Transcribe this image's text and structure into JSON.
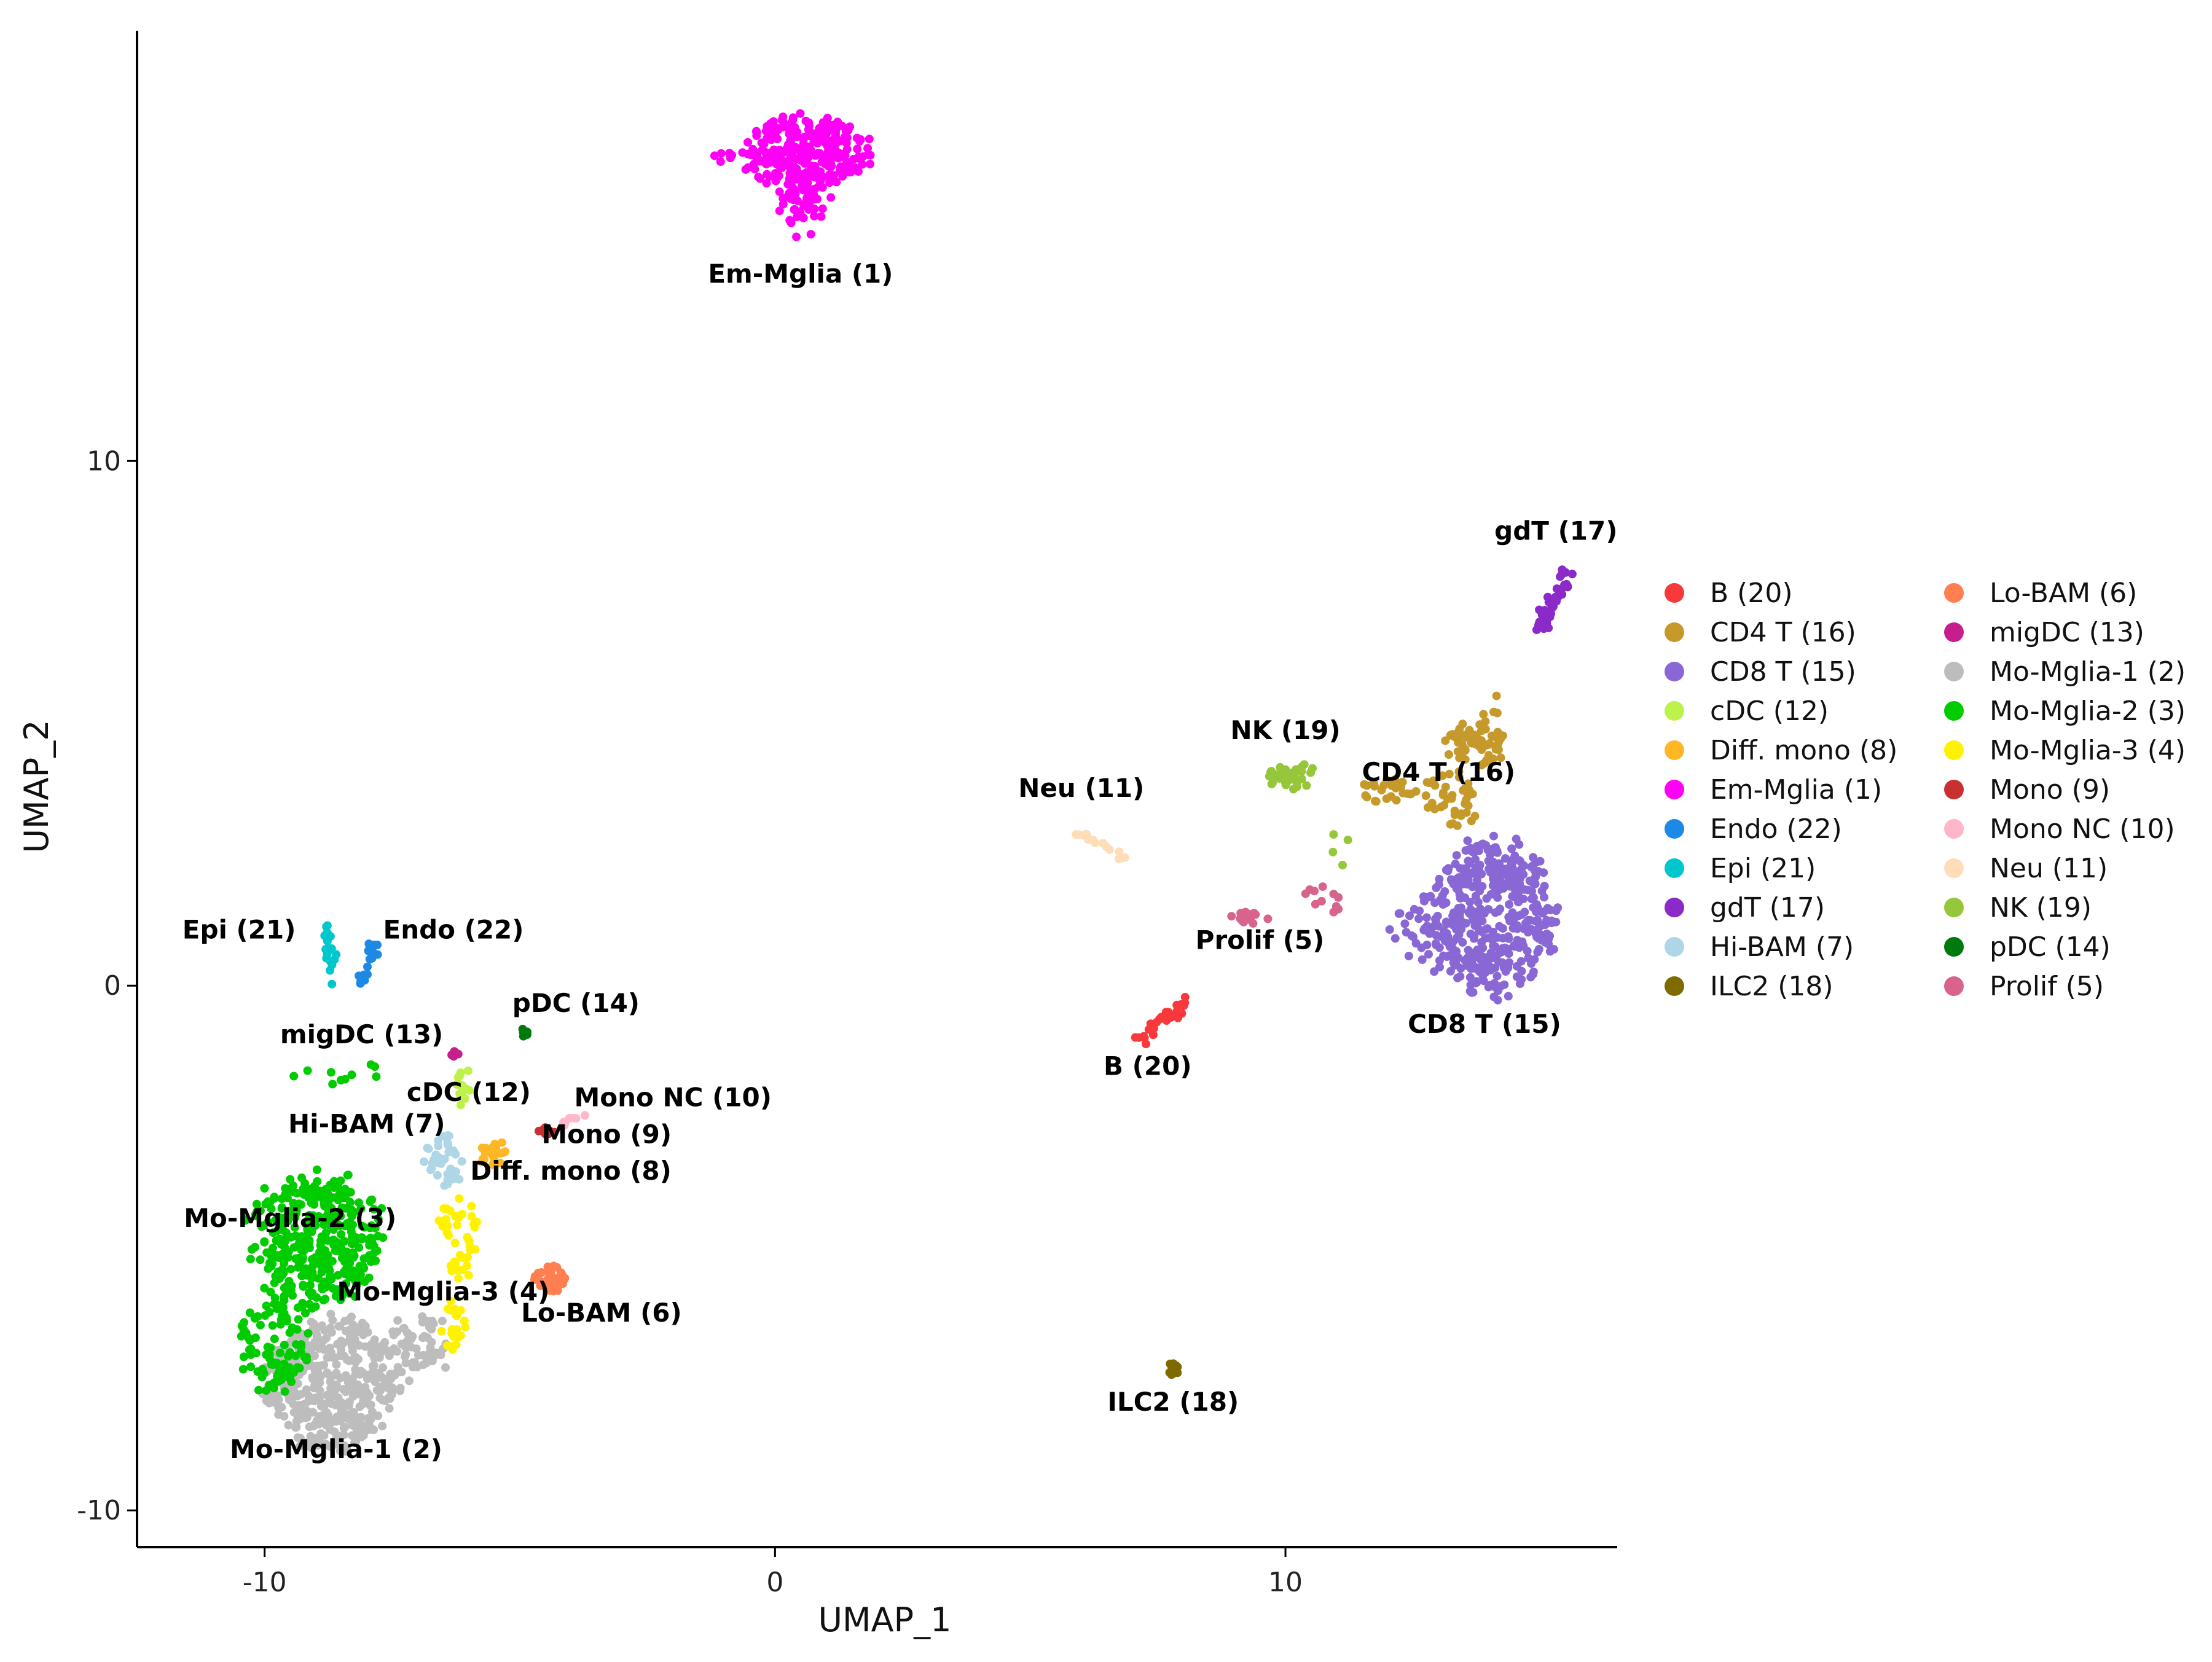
{
  "chart_data": {
    "type": "scatter",
    "title": "",
    "xlabel": "UMAP_1",
    "ylabel": "UMAP_2",
    "xlim": [
      -12.5,
      16.5
    ],
    "ylim": [
      -10.7,
      18.2
    ],
    "xticks": [
      -10,
      0,
      10
    ],
    "yticks": [
      -10,
      0,
      10
    ],
    "xtick_labels": [
      "-10",
      "0",
      "10"
    ],
    "ytick_labels": [
      "-10",
      "0",
      "10"
    ],
    "grid": false,
    "legend_position": "right",
    "point_size": 2.2,
    "clusters": [
      {
        "name": "B (20)",
        "color": "#F8393B",
        "label": "B (20)",
        "label_pos": [
          7.3,
          -1.7
        ],
        "blobs": [
          {
            "shape": "line",
            "x0": 7.0,
            "y0": -1.1,
            "x1": 8.3,
            "y1": -0.2,
            "n": 34,
            "spread": 0.07
          }
        ]
      },
      {
        "name": "CD4 T (16)",
        "color": "#C6992B",
        "label": "CD4 T (16)",
        "label_pos": [
          13.0,
          3.9
        ],
        "blobs": [
          {
            "cx": 13.7,
            "cy": 4.6,
            "rx": 0.6,
            "ry": 0.45,
            "n": 60
          },
          {
            "cx": 13.2,
            "cy": 3.5,
            "rx": 0.6,
            "ry": 0.6,
            "n": 40
          },
          {
            "cx": 12.0,
            "cy": 3.7,
            "rx": 0.6,
            "ry": 0.25,
            "n": 25
          },
          {
            "shape": "line",
            "x0": 14.0,
            "y0": 5.0,
            "x1": 14.3,
            "y1": 5.7,
            "n": 6,
            "spread": 0.08
          }
        ]
      },
      {
        "name": "CD8 T (15)",
        "color": "#8967D4",
        "label": "CD8 T (15)",
        "label_pos": [
          13.9,
          -0.9
        ],
        "blobs": [
          {
            "cx": 14.0,
            "cy": 1.3,
            "rx": 1.3,
            "ry": 1.5,
            "n": 420
          },
          {
            "cx": 12.5,
            "cy": 1.0,
            "rx": 0.5,
            "ry": 0.5,
            "n": 20
          }
        ]
      },
      {
        "name": "cDC (12)",
        "color": "#BDF24B",
        "label": "cDC (12)",
        "label_pos": [
          -6.0,
          -2.2
        ],
        "blobs": [
          {
            "cx": -6.1,
            "cy": -1.9,
            "rx": 0.15,
            "ry": 0.4,
            "n": 14
          }
        ]
      },
      {
        "name": "Diff. mono (8)",
        "color": "#FFB726",
        "label": "Diff. mono (8)",
        "label_pos": [
          -4.0,
          -3.7
        ],
        "blobs": [
          {
            "cx": -5.5,
            "cy": -3.2,
            "rx": 0.3,
            "ry": 0.25,
            "n": 20
          }
        ]
      },
      {
        "name": "Em-Mglia (1)",
        "color": "#FF00F7",
        "label": "Em-Mglia (1)",
        "label_pos": [
          0.5,
          13.4
        ],
        "blobs": [
          {
            "cx": 0.6,
            "cy": 15.9,
            "rx": 1.3,
            "ry": 0.7,
            "n": 260
          },
          {
            "cx": 0.6,
            "cy": 14.9,
            "rx": 0.6,
            "ry": 0.6,
            "n": 50
          },
          {
            "cx": -1.0,
            "cy": 15.8,
            "rx": 0.25,
            "ry": 0.15,
            "n": 8
          }
        ]
      },
      {
        "name": "Endo (22)",
        "color": "#1E88E5",
        "label": "Endo (22)",
        "label_pos": [
          -6.3,
          0.9
        ],
        "blobs": [
          {
            "shape": "line",
            "x0": -7.8,
            "y0": 0.9,
            "x1": -8.1,
            "y1": 0.0,
            "n": 20,
            "spread": 0.06
          }
        ]
      },
      {
        "name": "Epi (21)",
        "color": "#00C7CC",
        "label": "Epi (21)",
        "label_pos": [
          -10.5,
          0.9
        ],
        "blobs": [
          {
            "shape": "line",
            "x0": -8.8,
            "y0": 1.2,
            "x1": -8.7,
            "y1": 0.2,
            "n": 20,
            "spread": 0.06
          }
        ]
      },
      {
        "name": "gdT (17)",
        "color": "#8B2AC9",
        "label": "gdT (17)",
        "label_pos": [
          15.3,
          8.5
        ],
        "blobs": [
          {
            "shape": "line",
            "x0": 15.0,
            "y0": 6.8,
            "x1": 15.5,
            "y1": 7.9,
            "n": 40,
            "spread": 0.08
          }
        ]
      },
      {
        "name": "Hi-BAM (7)",
        "color": "#AED6E6",
        "label": "Hi-BAM (7)",
        "label_pos": [
          -8.0,
          -2.8
        ],
        "blobs": [
          {
            "cx": -6.5,
            "cy": -3.3,
            "rx": 0.45,
            "ry": 0.5,
            "n": 36
          }
        ]
      },
      {
        "name": "ILC2 (18)",
        "color": "#7F6A00",
        "label": "ILC2 (18)",
        "label_pos": [
          7.8,
          -8.1
        ],
        "blobs": [
          {
            "cx": 7.8,
            "cy": -7.3,
            "rx": 0.1,
            "ry": 0.12,
            "n": 14
          }
        ]
      },
      {
        "name": "Lo-BAM (6)",
        "color": "#FF7F50",
        "label": "Lo-BAM (6)",
        "label_pos": [
          -3.4,
          -6.4
        ],
        "blobs": [
          {
            "cx": -4.4,
            "cy": -5.6,
            "rx": 0.3,
            "ry": 0.25,
            "n": 36
          }
        ]
      },
      {
        "name": "migDC (13)",
        "color": "#C71E8E",
        "label": "migDC (13)",
        "label_pos": [
          -8.1,
          -1.1
        ],
        "blobs": [
          {
            "cx": -6.3,
            "cy": -1.3,
            "rx": 0.1,
            "ry": 0.06,
            "n": 6
          }
        ]
      },
      {
        "name": "Mo-Mglia-1 (2)",
        "color": "#BDBDBD",
        "label": "Mo-Mglia-1 (2)",
        "label_pos": [
          -8.6,
          -9.0
        ],
        "blobs": [
          {
            "cx": -8.7,
            "cy": -7.6,
            "rx": 1.3,
            "ry": 1.3,
            "n": 420
          },
          {
            "cx": -7.0,
            "cy": -6.9,
            "rx": 0.7,
            "ry": 0.6,
            "n": 60
          }
        ]
      },
      {
        "name": "Mo-Mglia-2 (3)",
        "color": "#00CC00",
        "label": "Mo-Mglia-2 (3)",
        "label_pos": [
          -9.5,
          -4.6
        ],
        "blobs": [
          {
            "cx": -9.0,
            "cy": -4.8,
            "rx": 1.3,
            "ry": 1.3,
            "n": 360
          },
          {
            "cx": -9.8,
            "cy": -6.8,
            "rx": 0.7,
            "ry": 1.0,
            "n": 100
          },
          {
            "cx": -8.5,
            "cy": -1.7,
            "rx": 1.0,
            "ry": 0.3,
            "n": 10
          }
        ]
      },
      {
        "name": "Mo-Mglia-3 (4)",
        "color": "#FFF200",
        "label": "Mo-Mglia-3 (4)",
        "label_pos": [
          -6.5,
          -6.0
        ],
        "blobs": [
          {
            "cx": -6.2,
            "cy": -4.8,
            "rx": 0.4,
            "ry": 0.8,
            "n": 40
          },
          {
            "cx": -6.3,
            "cy": -6.5,
            "rx": 0.3,
            "ry": 0.5,
            "n": 20
          }
        ]
      },
      {
        "name": "Mono (9)",
        "color": "#C8312F",
        "label": "Mono (9)",
        "label_pos": [
          -3.3,
          -3.0
        ],
        "blobs": [
          {
            "cx": -4.5,
            "cy": -2.8,
            "rx": 0.2,
            "ry": 0.1,
            "n": 8
          }
        ]
      },
      {
        "name": "Mono NC (10)",
        "color": "#FFB6C8",
        "label": "Mono NC (10)",
        "label_pos": [
          -2.0,
          -2.3
        ],
        "blobs": [
          {
            "shape": "line",
            "x0": -4.2,
            "y0": -2.7,
            "x1": -3.8,
            "y1": -2.5,
            "n": 8,
            "spread": 0.04
          }
        ]
      },
      {
        "name": "Neu (11)",
        "color": "#FFDDB8",
        "label": "Neu (11)",
        "label_pos": [
          6.0,
          3.6
        ],
        "blobs": [
          {
            "shape": "line",
            "x0": 5.8,
            "y0": 3.0,
            "x1": 6.9,
            "y1": 2.4,
            "n": 16,
            "spread": 0.05
          }
        ]
      },
      {
        "name": "NK (19)",
        "color": "#96C73A",
        "label": "NK (19)",
        "label_pos": [
          10.0,
          4.7
        ],
        "blobs": [
          {
            "cx": 10.1,
            "cy": 4.0,
            "rx": 0.5,
            "ry": 0.25,
            "n": 40
          },
          {
            "cx": 11.0,
            "cy": 2.5,
            "rx": 0.3,
            "ry": 0.4,
            "n": 4
          }
        ]
      },
      {
        "name": "pDC (14)",
        "color": "#007A0C",
        "label": "pDC (14)",
        "label_pos": [
          -3.9,
          -0.5
        ],
        "blobs": [
          {
            "cx": -4.9,
            "cy": -0.9,
            "rx": 0.1,
            "ry": 0.1,
            "n": 6
          }
        ]
      },
      {
        "name": "Prolif (5)",
        "color": "#D8638D",
        "label": "Prolif (5)",
        "label_pos": [
          9.5,
          0.7
        ],
        "blobs": [
          {
            "cx": 9.3,
            "cy": 1.3,
            "rx": 0.4,
            "ry": 0.12,
            "n": 16
          },
          {
            "cx": 10.9,
            "cy": 1.7,
            "rx": 0.5,
            "ry": 0.3,
            "n": 12
          }
        ]
      }
    ]
  },
  "legend": {
    "columns": [
      [
        "B (20)",
        "CD4 T (16)",
        "CD8 T (15)",
        "cDC (12)",
        "Diff. mono (8)",
        "Em-Mglia (1)",
        "Endo (22)",
        "Epi (21)",
        "gdT (17)",
        "Hi-BAM (7)",
        "ILC2 (18)"
      ],
      [
        "Lo-BAM (6)",
        "migDC (13)",
        "Mo-Mglia-1 (2)",
        "Mo-Mglia-2 (3)",
        "Mo-Mglia-3 (4)",
        "Mono (9)",
        "Mono NC (10)",
        "Neu (11)",
        "NK (19)",
        "pDC (14)",
        "Prolif (5)"
      ]
    ]
  }
}
